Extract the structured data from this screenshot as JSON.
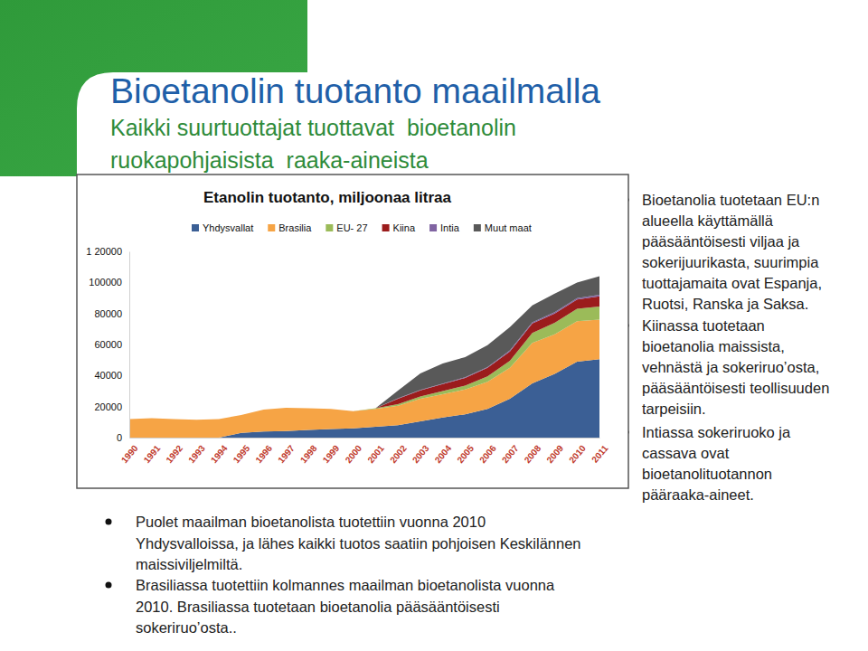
{
  "slide": {
    "title": "Bioetanolin tuotanto maailmalla",
    "subtitle": [
      "Kaikki suurtuottajat tuottavat  bioetanolin",
      "ruokapohjaisista  raaka-aineista"
    ],
    "bullets_right": [
      [
        "Bioetanolia tuotetaan EU:n",
        "alueella käyttämällä",
        "pääsääntöisesti viljaa ja",
        "sokerijuurikasta, suurimpia",
        "tuottajamaita ovat Espanja,",
        "Ruotsi, Ranska ja Saksa."
      ],
      [
        "Kiinassa tuotetaan",
        "bioetanolia maissista,",
        "vehnästä ja sokeriruo’osta,",
        "pääsääntöisesti teollisuuden",
        "tarpeisiin."
      ],
      [
        "Intiassa sokeriruoko ja",
        "cassava ovat",
        "bioetanolituotannon",
        "pääraaka-aineet."
      ]
    ],
    "bullets_bottom": [
      [
        "Puolet maailman bioetanolista tuotettiin vuonna 2010",
        "Yhdysvalloissa, ja lähes kaikki tuotos saatiin pohjoisen Keskilännen",
        "maissiviljelmiltä."
      ],
      [
        "Brasiliassa tuotettiin kolmannes maailman bioetanolista vuonna",
        "2010. Brasiliassa tuotetaan bioetanolia pääsääntöisesti",
        "sokeriruo’osta.."
      ]
    ]
  },
  "chart_data": {
    "type": "area",
    "stacked": true,
    "title": "Etanolin tuotanto, miljoonaa litraa",
    "legend": "top",
    "grid": false,
    "x": [
      1990,
      1991,
      1992,
      1993,
      1994,
      1995,
      1996,
      1997,
      1998,
      1999,
      2000,
      2001,
      2002,
      2003,
      2004,
      2005,
      2006,
      2007,
      2008,
      2009,
      2010,
      2011
    ],
    "xlim": [
      1990,
      2011
    ],
    "xticks": [
      1990,
      1991,
      1992,
      1993,
      1994,
      1995,
      1996,
      1997,
      1998,
      1999,
      2000,
      2001,
      2002,
      2003,
      2004,
      2005,
      2006,
      2007,
      2008,
      2009,
      2010,
      2011
    ],
    "ylim": [
      0,
      120000
    ],
    "yticks": [
      0,
      20000,
      40000,
      60000,
      80000,
      100000,
      {
        "value": 120000,
        "label": "1 20000"
      }
    ],
    "series": [
      {
        "name": "Yhdysvallat",
        "color": "#3b5f95",
        "values": [
          0,
          0,
          0,
          0,
          0,
          3000,
          4000,
          4200,
          5000,
          5500,
          6000,
          7000,
          8000,
          10500,
          13000,
          15000,
          18500,
          25000,
          35000,
          41000,
          49000,
          50500
        ]
      },
      {
        "name": "Brasilia",
        "color": "#f6a445",
        "values": [
          12000,
          12500,
          12000,
          11500,
          12000,
          11500,
          14000,
          15000,
          14000,
          13000,
          11000,
          11500,
          12500,
          14500,
          15000,
          16000,
          17500,
          20000,
          26000,
          25500,
          26000,
          25500
        ]
      },
      {
        "name": "EU- 27",
        "color": "#9bbb59",
        "values": [
          0,
          0,
          0,
          0,
          0,
          0,
          0,
          0,
          0,
          0,
          0,
          500,
          1000,
          1500,
          2000,
          2500,
          3500,
          4500,
          6500,
          7500,
          8000,
          8500
        ]
      },
      {
        "name": "Kiina",
        "color": "#9b1c1c",
        "values": [
          0,
          0,
          0,
          0,
          0,
          0,
          0,
          0,
          0,
          0,
          0,
          0,
          3500,
          4000,
          4500,
          5000,
          5500,
          6000,
          6000,
          6000,
          6000,
          6500
        ]
      },
      {
        "name": "Intia",
        "color": "#8064a2",
        "values": [
          0,
          0,
          0,
          0,
          0,
          0,
          0,
          0,
          0,
          0,
          0,
          0,
          300,
          300,
          300,
          400,
          500,
          700,
          700,
          800,
          900,
          1000
        ]
      },
      {
        "name": "Muut maat",
        "color": "#595959",
        "values": [
          0,
          0,
          0,
          0,
          0,
          0,
          0,
          0,
          0,
          0,
          0,
          0,
          5000,
          10600,
          13000,
          13000,
          14000,
          15000,
          11000,
          12000,
          10000,
          12000
        ]
      }
    ]
  }
}
